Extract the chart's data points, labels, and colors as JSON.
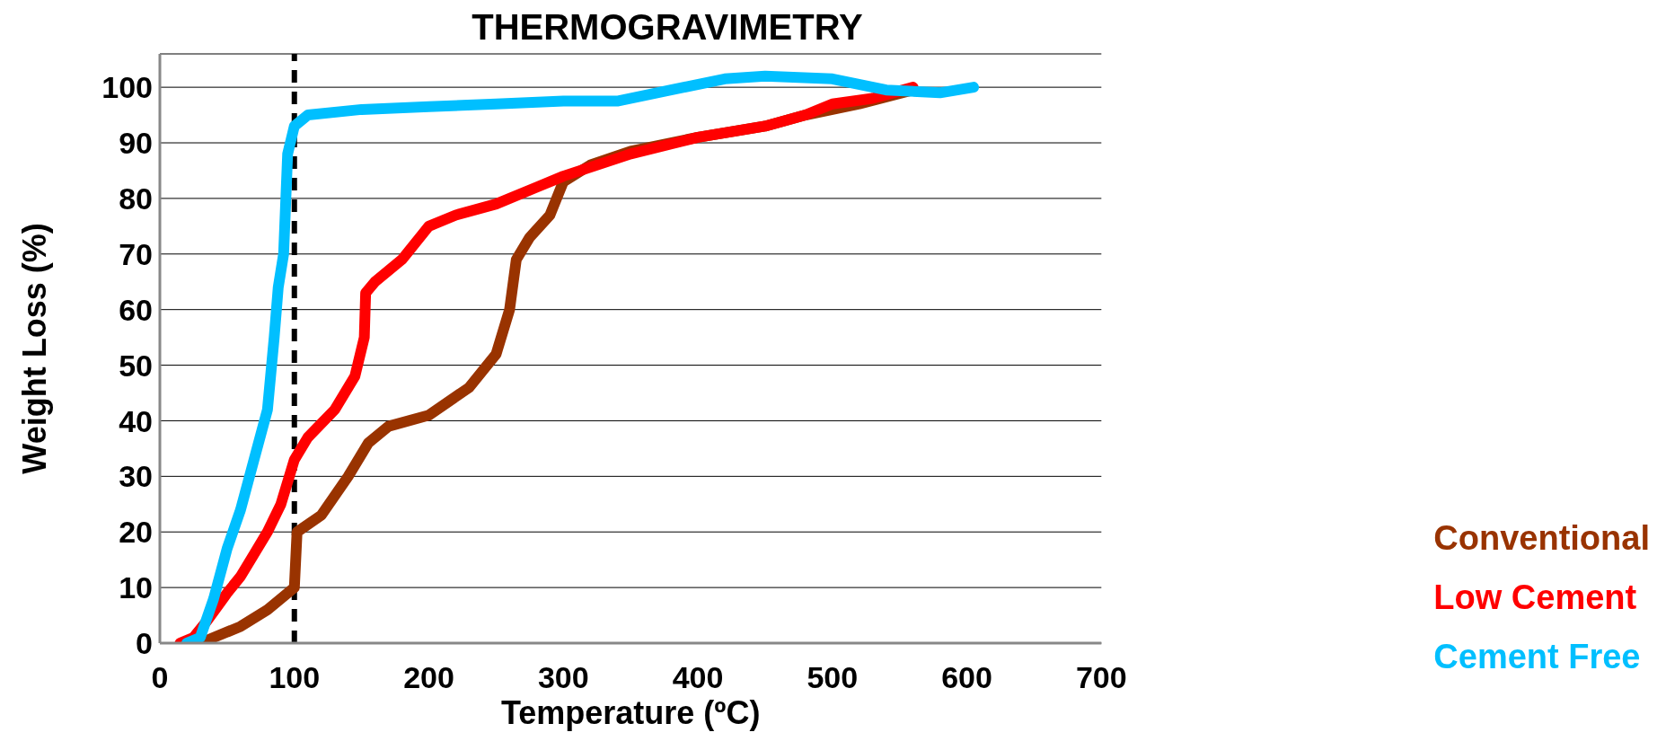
{
  "chart_data": {
    "type": "line",
    "title": "THERMOGRAVIMETRY",
    "xlabel": "Temperature (ºC)",
    "ylabel": "Weight Loss (%)",
    "xlim": [
      0,
      700
    ],
    "xticks": [
      0,
      100,
      200,
      300,
      400,
      500,
      600,
      700
    ],
    "ylim": [
      0,
      106
    ],
    "yticks": [
      0,
      10,
      20,
      30,
      40,
      50,
      60,
      70,
      80,
      90,
      100
    ],
    "grid": "y",
    "legend": "right",
    "marker": "none",
    "line_style": "solid",
    "ref_lines": [
      {
        "axis": "x",
        "value": 100,
        "color": "#000000",
        "line_style": "dashed"
      }
    ],
    "series": [
      {
        "name": "Conventional",
        "color": "#993300",
        "x": [
          30,
          40,
          60,
          80,
          100,
          102,
          120,
          140,
          155,
          170,
          200,
          230,
          250,
          260,
          265,
          275,
          290,
          300,
          320,
          350,
          400,
          450,
          480,
          520,
          560
        ],
        "values": [
          0,
          1,
          3,
          6,
          10,
          20,
          23,
          30,
          36,
          39,
          41,
          46,
          52,
          60,
          69,
          73,
          77,
          83,
          86,
          88.5,
          91,
          93,
          95,
          97,
          99.5
        ]
      },
      {
        "name": "Low Cement",
        "color": "#ff0000",
        "x": [
          15,
          25,
          35,
          50,
          60,
          70,
          80,
          90,
          100,
          110,
          130,
          145,
          152,
          153,
          160,
          180,
          200,
          220,
          250,
          280,
          300,
          350,
          400,
          450,
          480,
          500,
          530,
          560
        ],
        "values": [
          0,
          1,
          4,
          9,
          12,
          16,
          20,
          25,
          33,
          37,
          42,
          48,
          55,
          63,
          65,
          69,
          75,
          77,
          79,
          82,
          84,
          88,
          91,
          93,
          95,
          97,
          98,
          100
        ]
      },
      {
        "name": "Cement Free",
        "color": "#00bfff",
        "x": [
          20,
          30,
          40,
          50,
          60,
          70,
          80,
          85,
          88,
          92,
          95,
          100,
          110,
          150,
          200,
          250,
          300,
          340,
          380,
          420,
          450,
          500,
          540,
          580,
          605
        ],
        "values": [
          0,
          1,
          8,
          17,
          24,
          33,
          42,
          55,
          64,
          70,
          88,
          93,
          95,
          96,
          96.5,
          97,
          97.5,
          97.5,
          99.5,
          101.5,
          102,
          101.5,
          99.5,
          99,
          100
        ]
      }
    ]
  }
}
